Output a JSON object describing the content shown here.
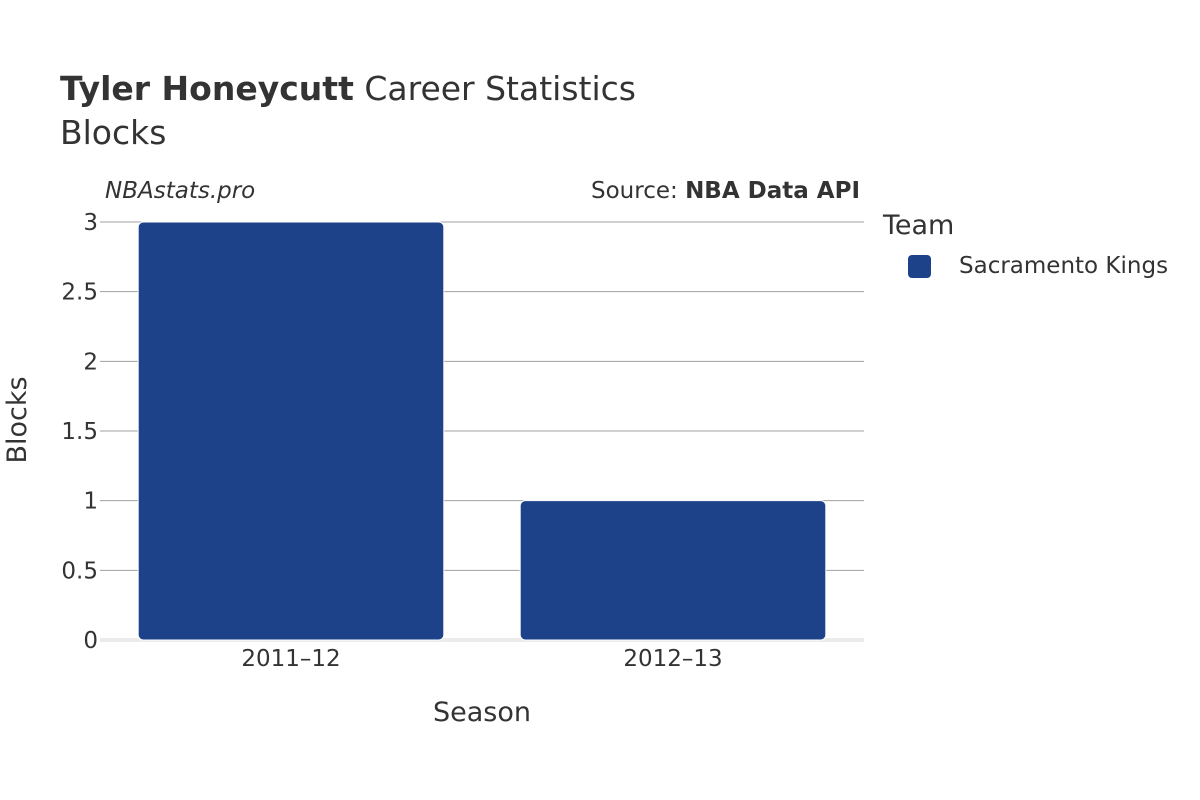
{
  "header": {
    "title_bold": "Tyler Honeycutt",
    "title_rest": " Career Statistics",
    "subtitle": "Blocks",
    "watermark": "NBAstats.pro",
    "source_prefix": "Source: ",
    "source_name": "NBA Data API"
  },
  "legend": {
    "title": "Team",
    "items": [
      {
        "label": "Sacramento Kings",
        "color": "#1d428a"
      }
    ]
  },
  "chart_data": {
    "type": "bar",
    "categories": [
      "2011–12",
      "2012–13"
    ],
    "series": [
      {
        "name": "Sacramento Kings",
        "values": [
          3,
          1
        ],
        "color": "#1d428a"
      }
    ],
    "xlabel": "Season",
    "ylabel": "Blocks",
    "ylim": [
      0,
      3
    ],
    "yticks": [
      0,
      0.5,
      1,
      1.5,
      2,
      2.5,
      3
    ],
    "ytick_labels": [
      "0",
      "0.5",
      "1",
      "1.5",
      "2",
      "2.5",
      "3"
    ],
    "grid": true,
    "legend_position": "right"
  }
}
